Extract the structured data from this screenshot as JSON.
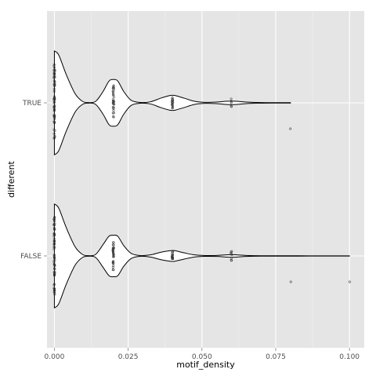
{
  "chart_data": {
    "type": "violin",
    "title": "",
    "xlabel": "motif_density",
    "ylabel": "different",
    "xlim": [
      -0.0025,
      0.105
    ],
    "x_ticks": [
      "0.000",
      "0.025",
      "0.050",
      "0.075",
      "0.100"
    ],
    "x_tick_values": [
      0,
      0.025,
      0.05,
      0.075,
      0.1
    ],
    "categories": [
      "TRUE",
      "FALSE"
    ],
    "orientation": "horizontal",
    "grid": true,
    "legend": "none",
    "colors": {
      "panel": "#e5e5e5",
      "grid_major": "#ffffff",
      "grid_minor": "#f2f2f2",
      "violin_fill": "#ffffff",
      "violin_stroke": "#000000",
      "points": "#333333"
    },
    "series": [
      {
        "category": "TRUE",
        "x_max": 0.08,
        "density_profile": [
          [
            0,
            1
          ],
          [
            0.0015,
            0.92
          ],
          [
            0.004,
            0.55
          ],
          [
            0.007,
            0.18
          ],
          [
            0.0095,
            0.03
          ],
          [
            0.0115,
            0.005
          ],
          [
            0.014,
            0.03
          ],
          [
            0.0165,
            0.22
          ],
          [
            0.0185,
            0.42
          ],
          [
            0.02,
            0.45
          ],
          [
            0.0215,
            0.42
          ],
          [
            0.0235,
            0.22
          ],
          [
            0.026,
            0.05
          ],
          [
            0.029,
            0.008
          ],
          [
            0.0325,
            0.02
          ],
          [
            0.036,
            0.09
          ],
          [
            0.039,
            0.14
          ],
          [
            0.04,
            0.145
          ],
          [
            0.041,
            0.14
          ],
          [
            0.044,
            0.09
          ],
          [
            0.0475,
            0.03
          ],
          [
            0.051,
            0.01
          ],
          [
            0.055,
            0.015
          ],
          [
            0.058,
            0.03
          ],
          [
            0.06,
            0.035
          ],
          [
            0.062,
            0.03
          ],
          [
            0.065,
            0.015
          ],
          [
            0.07,
            0.006
          ],
          [
            0.075,
            0.004
          ],
          [
            0.08,
            0.003
          ]
        ],
        "points": [
          {
            "x": 0,
            "n": 60
          },
          {
            "x": 0.02,
            "n": 30
          },
          {
            "x": 0.04,
            "n": 18
          },
          {
            "x": 0.06,
            "n": 5
          },
          {
            "x": 0.08,
            "n": 1
          }
        ]
      },
      {
        "category": "FALSE",
        "x_max": 0.1,
        "density_profile": [
          [
            0,
            1
          ],
          [
            0.0015,
            0.92
          ],
          [
            0.004,
            0.55
          ],
          [
            0.007,
            0.18
          ],
          [
            0.0095,
            0.03
          ],
          [
            0.0115,
            0.005
          ],
          [
            0.014,
            0.03
          ],
          [
            0.0165,
            0.22
          ],
          [
            0.0185,
            0.38
          ],
          [
            0.02,
            0.4
          ],
          [
            0.0215,
            0.38
          ],
          [
            0.0235,
            0.2
          ],
          [
            0.026,
            0.05
          ],
          [
            0.029,
            0.008
          ],
          [
            0.0325,
            0.02
          ],
          [
            0.036,
            0.07
          ],
          [
            0.039,
            0.1
          ],
          [
            0.04,
            0.105
          ],
          [
            0.041,
            0.1
          ],
          [
            0.044,
            0.06
          ],
          [
            0.0475,
            0.02
          ],
          [
            0.051,
            0.008
          ],
          [
            0.055,
            0.01
          ],
          [
            0.058,
            0.02
          ],
          [
            0.06,
            0.025
          ],
          [
            0.062,
            0.02
          ],
          [
            0.065,
            0.01
          ],
          [
            0.07,
            0.004
          ],
          [
            0.08,
            0.003
          ],
          [
            0.09,
            0.0025
          ],
          [
            0.1,
            0.002
          ]
        ],
        "points": [
          {
            "x": 0,
            "n": 60
          },
          {
            "x": 0.02,
            "n": 32
          },
          {
            "x": 0.04,
            "n": 16
          },
          {
            "x": 0.06,
            "n": 8
          },
          {
            "x": 0.08,
            "n": 1
          },
          {
            "x": 0.1,
            "n": 1
          }
        ]
      }
    ]
  }
}
